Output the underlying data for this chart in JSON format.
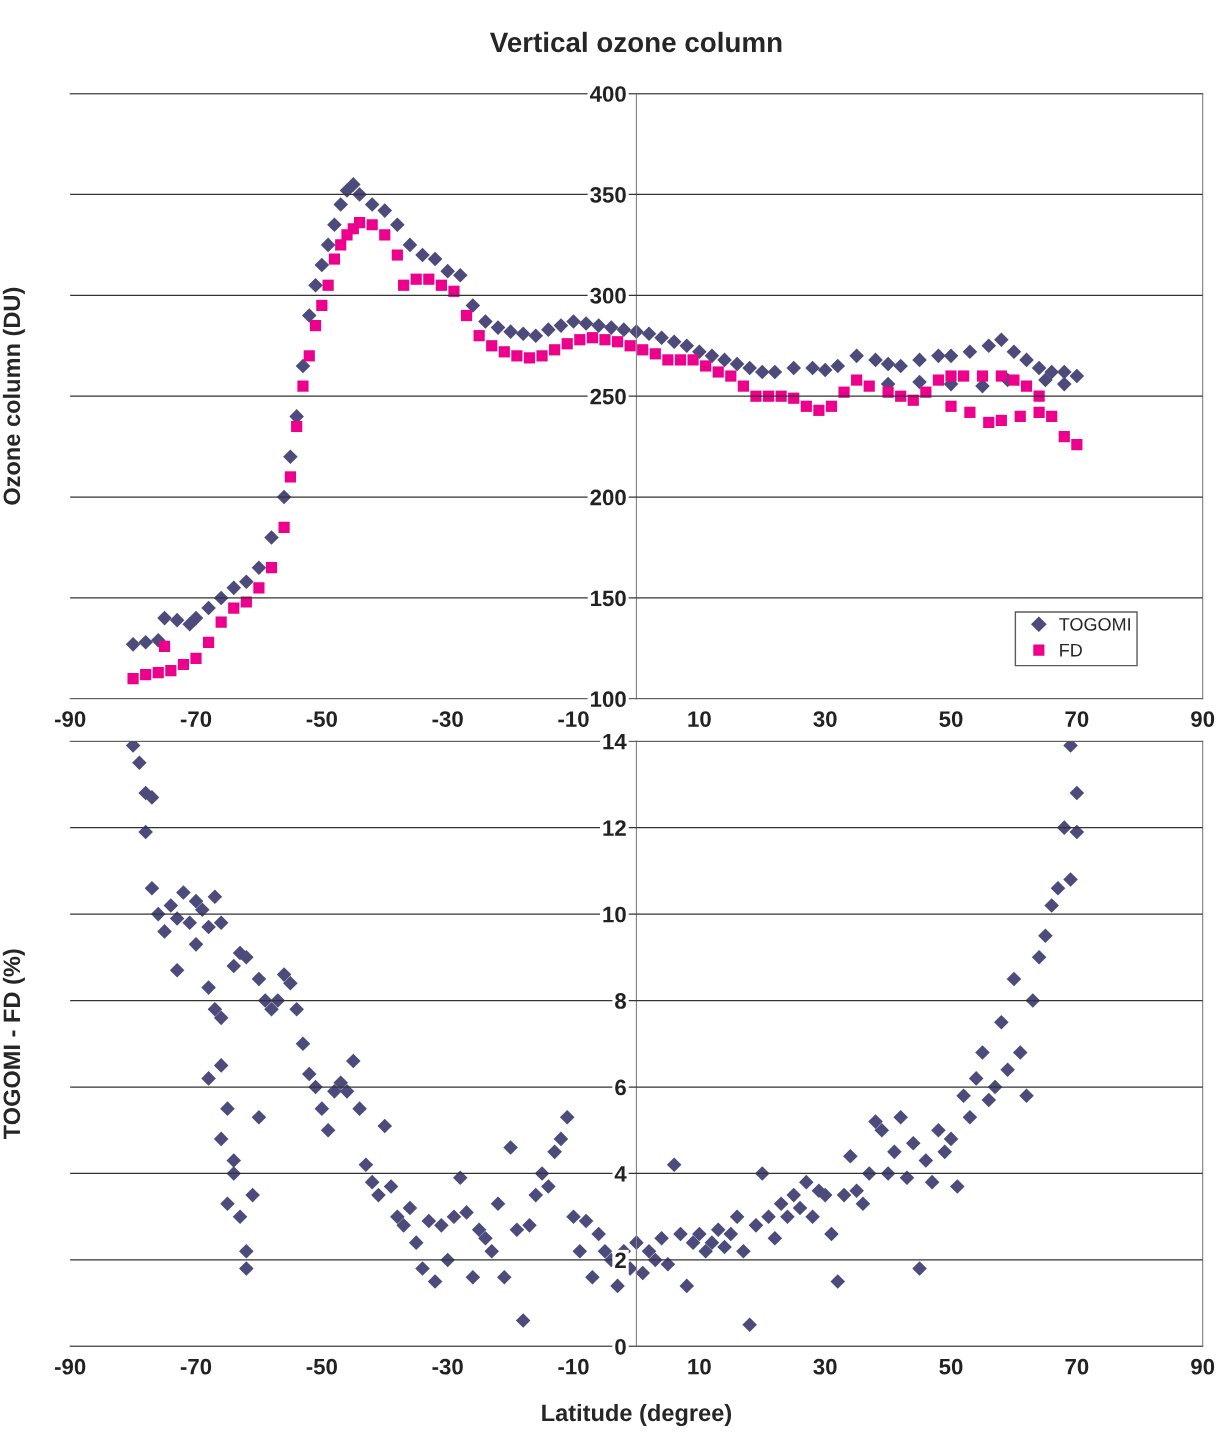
{
  "chart_data": [
    {
      "type": "scatter",
      "title": "Vertical ozone column",
      "ylabel": "Ozone column (DU)",
      "xlim": [
        -90,
        90
      ],
      "xticks": [
        -90,
        -70,
        -50,
        -30,
        -10,
        10,
        30,
        50,
        70,
        90
      ],
      "ylim": [
        100,
        400
      ],
      "yticks": [
        100,
        150,
        200,
        250,
        300,
        350,
        400
      ],
      "grid": "y",
      "legend": "bottom right",
      "series": [
        {
          "name": "TOGOMI",
          "color": "#4d4a7c",
          "marker": "diamond",
          "x": [
            -80,
            -78,
            -76,
            -75,
            -73,
            -71,
            -70,
            -68,
            -66,
            -64,
            -62,
            -60,
            -58,
            -56,
            -55,
            -54,
            -53,
            -52,
            -51,
            -50,
            -49,
            -48,
            -47,
            -46,
            -45,
            -44,
            -42,
            -40,
            -38,
            -36,
            -34,
            -32,
            -30,
            -28,
            -26,
            -24,
            -22,
            -20,
            -18,
            -16,
            -14,
            -12,
            -10,
            -8,
            -6,
            -4,
            -2,
            0,
            2,
            4,
            6,
            8,
            10,
            12,
            14,
            16,
            18,
            20,
            22,
            25,
            28,
            30,
            32,
            35,
            38,
            40,
            42,
            45,
            48,
            50,
            53,
            56,
            58,
            60,
            62,
            64,
            66,
            68,
            70,
            40,
            45,
            50,
            55,
            59,
            65,
            68
          ],
          "values": [
            127,
            128,
            129,
            140,
            139,
            137,
            140,
            145,
            150,
            155,
            158,
            165,
            180,
            200,
            220,
            240,
            265,
            290,
            305,
            315,
            325,
            335,
            345,
            352,
            355,
            350,
            345,
            342,
            335,
            325,
            320,
            318,
            312,
            310,
            295,
            287,
            284,
            282,
            281,
            280,
            283,
            285,
            287,
            286,
            285,
            284,
            283,
            282,
            281,
            279,
            277,
            275,
            272,
            270,
            268,
            266,
            264,
            262,
            262,
            264,
            264,
            263,
            265,
            270,
            268,
            266,
            265,
            268,
            270,
            270,
            272,
            275,
            278,
            272,
            268,
            264,
            262,
            262,
            260,
            256,
            257,
            256,
            255,
            258,
            258,
            256
          ]
        },
        {
          "name": "FD",
          "color": "#ec008c",
          "marker": "square",
          "x": [
            -80,
            -78,
            -76,
            -75,
            -74,
            -72,
            -70,
            -68,
            -66,
            -64,
            -62,
            -60,
            -58,
            -56,
            -55,
            -54,
            -53,
            -52,
            -51,
            -50,
            -49,
            -48,
            -47,
            -46,
            -45,
            -44,
            -42,
            -40,
            -38,
            -37,
            -35,
            -33,
            -31,
            -29,
            -27,
            -25,
            -23,
            -21,
            -19,
            -17,
            -15,
            -13,
            -11,
            -9,
            -7,
            -5,
            -3,
            -1,
            1,
            3,
            5,
            7,
            9,
            11,
            13,
            15,
            17,
            19,
            21,
            23,
            25,
            27,
            29,
            31,
            33,
            35,
            37,
            40,
            42,
            44,
            46,
            48,
            50,
            52,
            55,
            58,
            60,
            62,
            64,
            66,
            68,
            70,
            50,
            53,
            56,
            58,
            61,
            64
          ],
          "values": [
            110,
            112,
            113,
            126,
            114,
            117,
            120,
            128,
            138,
            145,
            148,
            155,
            165,
            185,
            210,
            235,
            255,
            270,
            285,
            295,
            305,
            318,
            325,
            330,
            333,
            336,
            335,
            330,
            320,
            305,
            308,
            308,
            305,
            302,
            290,
            280,
            275,
            272,
            270,
            269,
            270,
            273,
            276,
            278,
            279,
            278,
            277,
            275,
            273,
            271,
            268,
            268,
            268,
            265,
            262,
            260,
            255,
            250,
            250,
            250,
            249,
            245,
            243,
            245,
            252,
            258,
            255,
            252,
            250,
            248,
            252,
            258,
            260,
            260,
            260,
            260,
            258,
            255,
            250,
            240,
            230,
            226,
            245,
            242,
            237,
            238,
            240,
            242
          ]
        }
      ]
    },
    {
      "type": "scatter",
      "xlabel": "Latitude (degree)",
      "ylabel": "TOGOMI - FD (%)",
      "xlim": [
        -90,
        90
      ],
      "xticks": [
        -90,
        -70,
        -50,
        -30,
        -10,
        10,
        30,
        50,
        70,
        90
      ],
      "ylim": [
        0,
        14
      ],
      "yticks": [
        0,
        2,
        4,
        6,
        8,
        10,
        12,
        14
      ],
      "grid": "y",
      "series": [
        {
          "color": "#4d4a7c",
          "marker": "diamond",
          "x": [
            -80,
            -79,
            -78,
            -77,
            -78,
            -77,
            -76,
            -75,
            -74,
            -73,
            -72,
            -71,
            -70,
            -69,
            -68,
            -67,
            -66,
            -73,
            -70,
            -68,
            -67,
            -66,
            -65,
            -64,
            -63,
            -62,
            -62,
            -61,
            -60,
            -64,
            -65,
            -66,
            -68,
            -66,
            -64,
            -63,
            -62,
            -60,
            -59,
            -58,
            -57,
            -56,
            -55,
            -54,
            -53,
            -52,
            -51,
            -50,
            -49,
            -48,
            -47,
            -46,
            -45,
            -44,
            -43,
            -42,
            -41,
            -40,
            -39,
            -38,
            -37,
            -36,
            -35,
            -34,
            -33,
            -32,
            -31,
            -30,
            -29,
            -28,
            -27,
            -26,
            -25,
            -24,
            -23,
            -22,
            -21,
            -20,
            -19,
            -18,
            -17,
            -16,
            -15,
            -14,
            -13,
            -12,
            -11,
            -10,
            -9,
            -8,
            -7,
            -6,
            -5,
            -4,
            -3,
            -2,
            -1,
            0,
            1,
            2,
            3,
            4,
            5,
            6,
            7,
            8,
            9,
            10,
            11,
            12,
            13,
            14,
            15,
            16,
            17,
            18,
            19,
            20,
            21,
            22,
            23,
            24,
            25,
            26,
            27,
            28,
            29,
            30,
            31,
            32,
            33,
            34,
            35,
            36,
            37,
            38,
            39,
            40,
            41,
            42,
            43,
            44,
            45,
            46,
            47,
            48,
            49,
            50,
            51,
            52,
            53,
            54,
            55,
            56,
            57,
            58,
            59,
            60,
            61,
            62,
            63,
            64,
            65,
            66,
            67,
            68,
            69,
            70,
            69,
            70
          ],
          "values": [
            13.9,
            13.5,
            12.8,
            12.7,
            11.9,
            10.6,
            10.0,
            9.6,
            10.2,
            9.9,
            10.5,
            9.8,
            10.3,
            10.1,
            9.7,
            10.4,
            9.8,
            8.7,
            9.3,
            8.3,
            7.8,
            7.6,
            5.5,
            4.3,
            3.0,
            1.8,
            2.2,
            3.5,
            5.3,
            4.0,
            3.3,
            4.8,
            6.2,
            6.5,
            8.8,
            9.1,
            9.0,
            8.5,
            8.0,
            7.8,
            8.0,
            8.6,
            8.4,
            7.8,
            7.0,
            6.3,
            6.0,
            5.5,
            5.0,
            5.9,
            6.1,
            5.9,
            6.6,
            5.5,
            4.2,
            3.8,
            3.5,
            5.1,
            3.7,
            3.0,
            2.8,
            3.2,
            2.4,
            1.8,
            2.9,
            1.5,
            2.8,
            2.0,
            3.0,
            3.9,
            3.1,
            1.6,
            2.7,
            2.5,
            2.2,
            3.3,
            1.6,
            4.6,
            2.7,
            0.6,
            2.8,
            3.5,
            4.0,
            3.7,
            4.5,
            4.8,
            5.3,
            3.0,
            2.2,
            2.9,
            1.6,
            2.6,
            2.2,
            2.0,
            1.4,
            2.2,
            1.8,
            2.4,
            1.7,
            2.2,
            2.0,
            2.5,
            1.9,
            4.2,
            2.6,
            1.4,
            2.4,
            2.6,
            2.2,
            2.4,
            2.7,
            2.3,
            2.6,
            3.0,
            2.2,
            0.5,
            2.8,
            4.0,
            3.0,
            2.5,
            3.3,
            3.0,
            3.5,
            3.2,
            3.8,
            3.0,
            3.6,
            3.5,
            2.6,
            1.5,
            3.5,
            4.4,
            3.6,
            3.3,
            4.0,
            5.2,
            5.0,
            4.0,
            4.5,
            5.3,
            3.9,
            4.7,
            1.8,
            4.3,
            3.8,
            5.0,
            4.5,
            4.8,
            3.7,
            5.8,
            5.3,
            6.2,
            6.8,
            5.7,
            6.0,
            7.5,
            6.4,
            8.5,
            6.8,
            5.8,
            8.0,
            9.0,
            9.5,
            10.2,
            10.6,
            12.0,
            13.9,
            12.8,
            10.8,
            11.9
          ]
        }
      ]
    }
  ]
}
